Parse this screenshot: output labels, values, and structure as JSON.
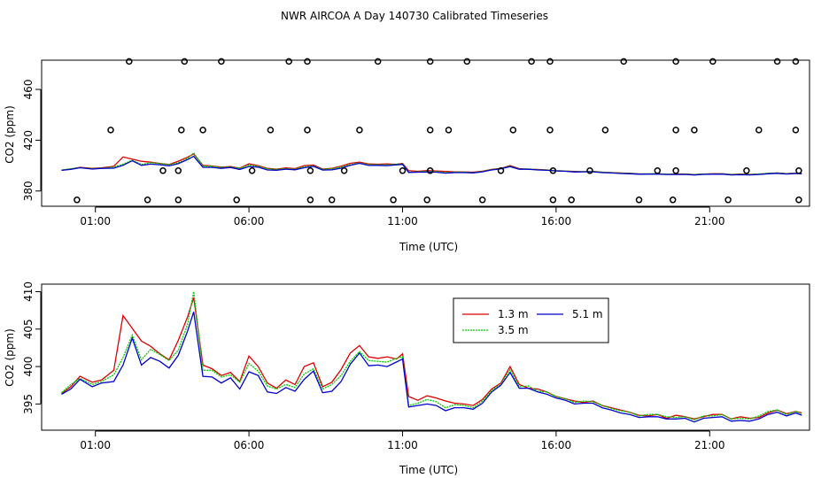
{
  "title": "NWR AIRCOA A  Day 140730  Calibrated Timeseries",
  "chart_data": [
    {
      "type": "scatter",
      "xlabel": "Time (UTC)",
      "ylabel": "CO2 (ppm)",
      "xlim": [
        -0.75,
        24.25
      ],
      "ylim": [
        368,
        483
      ],
      "xticks": [
        1,
        6,
        11,
        16,
        21
      ],
      "xtick_labels": [
        "01:00",
        "06:00",
        "11:00",
        "16:00",
        "21:00"
      ],
      "yticks": [
        380,
        420,
        460
      ],
      "ytick_labels": [
        "380",
        "420",
        "460"
      ],
      "grid": false,
      "lines_from_panel": 1,
      "points": [
        [
          0.4,
          373
        ],
        [
          1.5,
          428
        ],
        [
          2.1,
          482
        ],
        [
          2.7,
          373
        ],
        [
          3.2,
          396
        ],
        [
          3.7,
          373
        ],
        [
          3.7,
          396
        ],
        [
          3.8,
          428
        ],
        [
          3.9,
          482
        ],
        [
          4.5,
          428
        ],
        [
          5.1,
          482
        ],
        [
          5.6,
          373
        ],
        [
          6.1,
          396
        ],
        [
          6.7,
          428
        ],
        [
          7.3,
          482
        ],
        [
          7.9,
          482
        ],
        [
          7.9,
          428
        ],
        [
          8.0,
          373
        ],
        [
          8.0,
          396
        ],
        [
          8.7,
          373
        ],
        [
          9.1,
          396
        ],
        [
          9.6,
          428
        ],
        [
          10.2,
          482
        ],
        [
          10.7,
          373
        ],
        [
          11.0,
          396
        ],
        [
          11.8,
          373
        ],
        [
          11.9,
          396
        ],
        [
          11.9,
          428
        ],
        [
          11.9,
          482
        ],
        [
          12.5,
          428
        ],
        [
          13.1,
          482
        ],
        [
          13.6,
          373
        ],
        [
          14.2,
          396
        ],
        [
          14.6,
          428
        ],
        [
          15.2,
          482
        ],
        [
          15.8,
          482
        ],
        [
          15.8,
          428
        ],
        [
          15.9,
          373
        ],
        [
          15.9,
          396
        ],
        [
          16.5,
          373
        ],
        [
          17.1,
          396
        ],
        [
          17.6,
          428
        ],
        [
          18.2,
          482
        ],
        [
          18.7,
          373
        ],
        [
          19.3,
          396
        ],
        [
          19.8,
          373
        ],
        [
          19.9,
          396
        ],
        [
          19.9,
          428
        ],
        [
          19.9,
          482
        ],
        [
          20.5,
          428
        ],
        [
          21.1,
          482
        ],
        [
          21.6,
          373
        ],
        [
          22.2,
          396
        ],
        [
          22.6,
          428
        ],
        [
          23.2,
          482
        ],
        [
          23.8,
          482
        ],
        [
          23.8,
          428
        ],
        [
          23.9,
          373
        ],
        [
          23.9,
          396
        ]
      ]
    },
    {
      "type": "line",
      "xlabel": "Time (UTC)",
      "ylabel": "CO2 (ppm)",
      "xlim": [
        -0.75,
        24.25
      ],
      "ylim": [
        391.5,
        411
      ],
      "xticks": [
        1,
        6,
        11,
        16,
        21
      ],
      "xtick_labels": [
        "01:00",
        "06:00",
        "11:00",
        "16:00",
        "21:00"
      ],
      "yticks": [
        395,
        400,
        405,
        410
      ],
      "ytick_labels": [
        "395",
        "400",
        "405",
        "410"
      ],
      "grid": false,
      "legend": "top-center",
      "x": [
        -0.1,
        0.2,
        0.5,
        0.9,
        1.2,
        1.6,
        1.9,
        2.2,
        2.5,
        2.8,
        3.1,
        3.4,
        3.7,
        4.0,
        4.2,
        4.5,
        4.8,
        5.1,
        5.4,
        5.7,
        6.0,
        6.3,
        6.6,
        6.9,
        7.2,
        7.5,
        7.8,
        8.1,
        8.4,
        8.7,
        9.0,
        9.3,
        9.6,
        9.9,
        10.2,
        10.5,
        10.8,
        11.0,
        11.2,
        11.5,
        11.8,
        12.1,
        12.4,
        12.7,
        13.0,
        13.3,
        13.6,
        13.9,
        14.2,
        14.5,
        14.8,
        15.1,
        15.4,
        15.7,
        16.0,
        16.3,
        16.6,
        16.9,
        17.2,
        17.5,
        17.8,
        18.1,
        18.4,
        18.7,
        19.0,
        19.3,
        19.6,
        19.9,
        20.2,
        20.5,
        20.8,
        21.1,
        21.4,
        21.7,
        22.0,
        22.3,
        22.6,
        22.9,
        23.2,
        23.5,
        23.8,
        24.0
      ],
      "series": [
        {
          "name": "1.3 m",
          "color": "#dd0000",
          "values": [
            396.4,
            397.3,
            398.7,
            397.9,
            398.2,
            399.5,
            406.8,
            405.1,
            403.4,
            402.7,
            401.7,
            400.9,
            403.5,
            406.6,
            409.2,
            400.2,
            399.7,
            398.8,
            399.2,
            398.0,
            401.4,
            400.0,
            397.8,
            397.1,
            398.2,
            397.6,
            400.0,
            400.5,
            397.3,
            397.9,
            399.6,
            401.8,
            402.8,
            401.3,
            401.1,
            401.3,
            401.0,
            401.7,
            396.0,
            395.5,
            396.1,
            395.8,
            395.4,
            395.1,
            395.0,
            394.8,
            395.6,
            397.0,
            397.8,
            400.0,
            397.6,
            397.1,
            397.0,
            396.6,
            396.0,
            395.7,
            395.4,
            395.2,
            395.4,
            394.8,
            394.5,
            394.2,
            393.9,
            393.5,
            393.4,
            393.6,
            393.1,
            393.5,
            393.3,
            393.0,
            393.3,
            393.6,
            393.6,
            393.0,
            393.3,
            393.1,
            393.2,
            393.8,
            394.2,
            393.7,
            394.0,
            393.8
          ]
        },
        {
          "name": "3.5 m",
          "color": "#00cc00",
          "values": [
            396.5,
            397.6,
            398.4,
            397.6,
            398.0,
            398.9,
            401.2,
            404.2,
            400.9,
            402.3,
            401.6,
            400.8,
            402.2,
            405.6,
            410.0,
            399.5,
            399.5,
            398.6,
            398.9,
            397.9,
            400.4,
            399.4,
            397.4,
            397.0,
            397.6,
            397.2,
            399.0,
            399.7,
            397.0,
            397.6,
            398.8,
            400.7,
            402.0,
            400.8,
            400.7,
            400.6,
            401.1,
            401.3,
            394.8,
            395.1,
            395.6,
            395.3,
            394.5,
            394.9,
            394.8,
            394.5,
            395.4,
            396.8,
            397.7,
            399.6,
            397.3,
            397.4,
            396.7,
            396.6,
            396.0,
            395.7,
            395.2,
            395.4,
            395.3,
            394.8,
            394.4,
            394.1,
            393.9,
            393.4,
            393.6,
            393.6,
            393.3,
            393.2,
            393.3,
            392.9,
            393.4,
            393.4,
            393.6,
            393.0,
            393.1,
            393.0,
            393.4,
            394.0,
            394.2,
            393.6,
            394.0,
            393.7
          ]
        },
        {
          "name": "5.1 m",
          "color": "#0000cc",
          "values": [
            396.3,
            397.0,
            398.3,
            397.3,
            397.8,
            398.0,
            400.2,
            403.8,
            400.2,
            401.2,
            400.7,
            399.8,
            401.5,
            404.7,
            407.3,
            398.7,
            398.6,
            397.8,
            398.5,
            397.0,
            399.3,
            398.8,
            396.6,
            396.4,
            397.2,
            396.7,
            398.3,
            399.4,
            396.5,
            396.7,
            398.0,
            400.3,
            401.8,
            400.1,
            400.2,
            400.0,
            400.6,
            401.0,
            394.6,
            394.8,
            395.0,
            394.8,
            394.1,
            394.5,
            394.5,
            394.3,
            395.1,
            396.6,
            397.5,
            399.2,
            397.1,
            397.1,
            396.6,
            396.3,
            395.8,
            395.5,
            395.0,
            395.1,
            395.1,
            394.5,
            394.2,
            393.8,
            393.6,
            393.2,
            393.3,
            393.3,
            393.0,
            393.0,
            393.1,
            392.6,
            393.1,
            393.2,
            393.3,
            392.7,
            392.8,
            392.7,
            393.0,
            393.6,
            393.9,
            393.4,
            393.8,
            393.5
          ]
        }
      ]
    }
  ]
}
